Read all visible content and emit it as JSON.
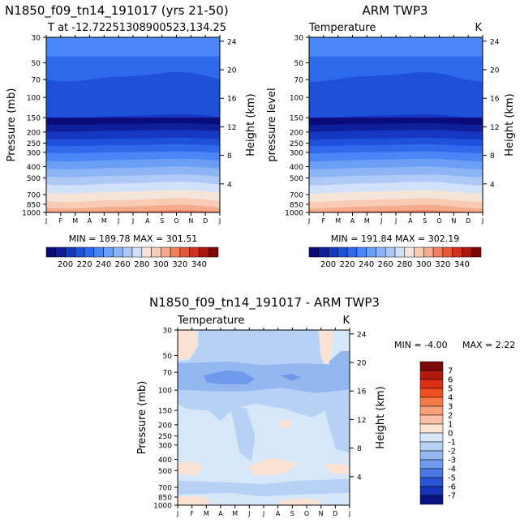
{
  "chart_data": [
    {
      "type": "heatmap",
      "title": "N1850_f09_tn14_191017 (yrs 21-50)",
      "subtitle": "T at -12.72251308900523,134.25",
      "ylabel": "Pressure (mb)",
      "y2label": "Height (km)",
      "x_ticks": [
        "J",
        "F",
        "M",
        "A",
        "M",
        "J",
        "J",
        "A",
        "S",
        "O",
        "N",
        "D",
        "J"
      ],
      "pressure_ticks": [
        30,
        50,
        70,
        100,
        150,
        200,
        250,
        300,
        400,
        500,
        700,
        850,
        1000
      ],
      "height_ticks": [
        24,
        20,
        16,
        12,
        8,
        4
      ],
      "stats": "MIN = 189.78  MAX = 301.51",
      "colorbar_labels": [
        "200",
        "220",
        "240",
        "260",
        "280",
        "300",
        "320",
        "340"
      ],
      "colormap": "cold-warm"
    },
    {
      "type": "heatmap",
      "title": "ARM TWP3",
      "panel_left_label": "Temperature",
      "panel_right_label": "K",
      "ylabel": "pressure level",
      "y2label": "Height (km)",
      "x_ticks": [
        "J",
        "F",
        "M",
        "A",
        "M",
        "J",
        "J",
        "A",
        "S",
        "O",
        "N",
        "D",
        "J"
      ],
      "pressure_ticks": [
        30,
        50,
        70,
        100,
        150,
        200,
        250,
        300,
        400,
        500,
        700,
        850,
        1000
      ],
      "height_ticks": [
        24,
        20,
        16,
        12,
        8,
        4
      ],
      "stats": "MIN = 191.84  MAX = 302.19",
      "colorbar_labels": [
        "200",
        "220",
        "240",
        "260",
        "280",
        "300",
        "320",
        "340"
      ],
      "colormap": "cold-warm"
    },
    {
      "type": "heatmap",
      "title": "N1850_f09_tn14_191017 - ARM TWP3",
      "panel_left_label": "Temperature",
      "panel_right_label": "K",
      "ylabel": "Pressure (mb)",
      "y2label": "Height (km)",
      "x_ticks": [
        "J",
        "F",
        "M",
        "A",
        "M",
        "J",
        "J",
        "A",
        "S",
        "O",
        "N",
        "D",
        "J"
      ],
      "pressure_ticks": [
        30,
        50,
        70,
        100,
        150,
        200,
        250,
        300,
        400,
        500,
        700,
        850,
        1000
      ],
      "height_ticks": [
        24,
        20,
        16,
        12,
        8,
        4
      ],
      "stats_min": "MIN =   -4.00",
      "stats_max": "MAX =    2.22",
      "colorbar_labels": [
        "7",
        "6",
        "5",
        "4",
        "3",
        "2",
        "1",
        "0",
        "-1",
        "-2",
        "-3",
        "-4",
        "-5",
        "-6",
        "-7"
      ],
      "colormap": "diverging"
    }
  ],
  "colors": {
    "cold_warm": [
      "#0a0a78",
      "#0f1e99",
      "#1537c2",
      "#1f50d9",
      "#2f6aec",
      "#4a86f5",
      "#6b9ef5",
      "#8db4f5",
      "#afc9f7",
      "#d2e1fa",
      "#f5e4d8",
      "#f9cbb4",
      "#f5ab8c",
      "#ee8060",
      "#e25a37",
      "#cc3420",
      "#a9180f",
      "#7a0703"
    ],
    "diverging_pos": [
      "#7b0b0b",
      "#b21a10",
      "#dd2f15",
      "#ef5020",
      "#f57a48",
      "#f7a07a",
      "#f9c2a5",
      "#fbe2d2"
    ],
    "diverging_neg": [
      "#d6e7fa",
      "#b7d1f5",
      "#94b7ef",
      "#6f99ea",
      "#4a78e4",
      "#2a55d4",
      "#1534b5",
      "#0a1480"
    ]
  }
}
